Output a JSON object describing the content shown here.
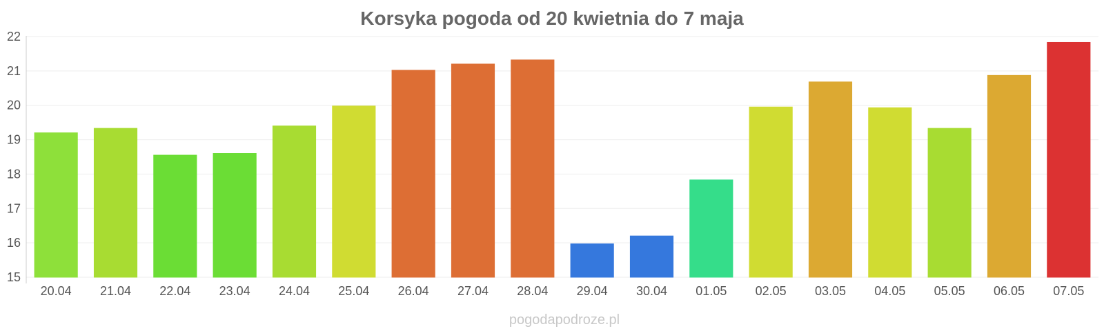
{
  "chart_data": {
    "type": "bar",
    "title": "Korsyka pogoda od 20 kwietnia do 7 maja",
    "categories": [
      "20.04",
      "21.04",
      "22.04",
      "23.04",
      "24.04",
      "25.04",
      "26.04",
      "27.04",
      "28.04",
      "29.04",
      "30.04",
      "01.05",
      "02.05",
      "03.05",
      "04.05",
      "05.05",
      "06.05",
      "07.05"
    ],
    "values": [
      19.2,
      19.33,
      18.55,
      18.6,
      19.4,
      19.98,
      21.02,
      21.2,
      21.32,
      15.97,
      16.2,
      17.83,
      19.95,
      20.68,
      19.93,
      19.33,
      20.87,
      21.83
    ],
    "colors": [
      "#8ee03a",
      "#a8dc32",
      "#6bdd35",
      "#6bdd35",
      "#a8dc32",
      "#d0dc32",
      "#dd6e34",
      "#dd6e34",
      "#dd6e34",
      "#3578dd",
      "#3578dd",
      "#35dd8a",
      "#d0dc32",
      "#dca932",
      "#d0dc32",
      "#a8dc32",
      "#dca932",
      "#dc3232"
    ],
    "ylim": [
      15,
      22
    ],
    "yticks": [
      "15",
      "16",
      "17",
      "18",
      "19",
      "20",
      "21",
      "22"
    ],
    "xlabel": "",
    "ylabel": "",
    "grid": true,
    "legend": "none"
  },
  "watermark": "pogodapodroze.pl"
}
